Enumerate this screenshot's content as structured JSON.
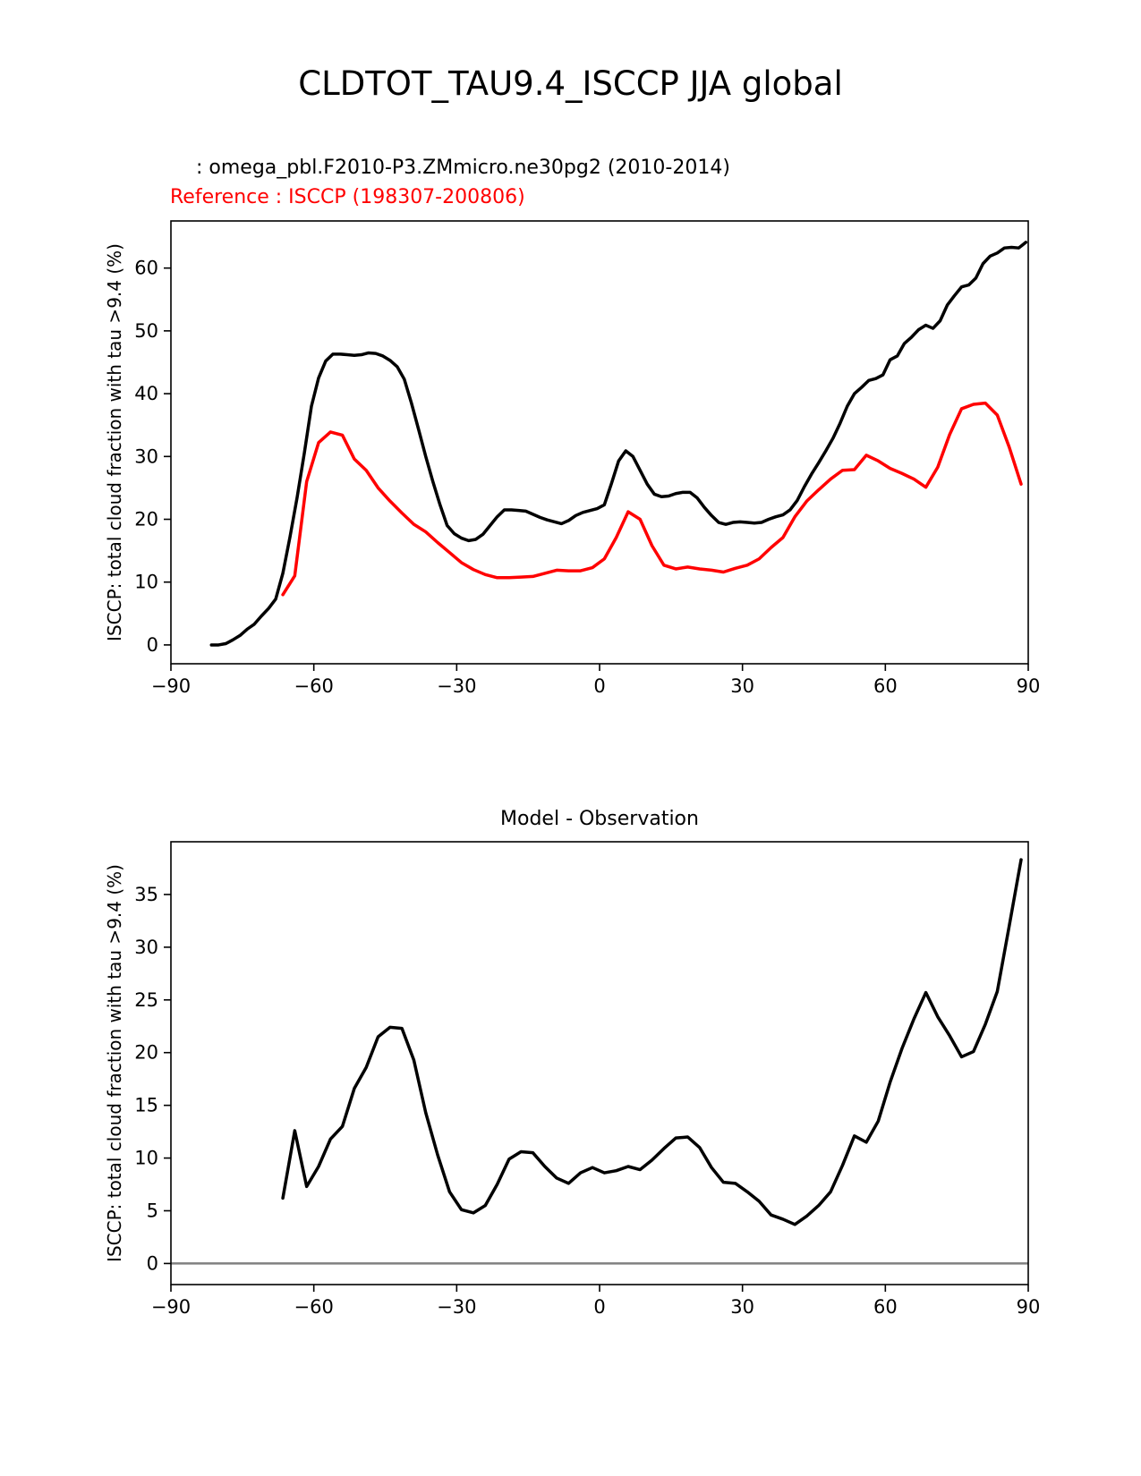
{
  "figure": {
    "title": "CLDTOT_TAU9.4_ISCCP JJA global"
  },
  "top_panel": {
    "test_name": "  : omega_pbl.F2010-P3.ZMmicro.ne30pg2 (2010-2014)",
    "ref_name": "Reference : ISCCP (198307-200806)"
  },
  "bottom_panel": {
    "title": "Model - Observation"
  },
  "colors": {
    "test": "#000000",
    "reference": "#ff0000",
    "zero_line": "#808080"
  },
  "chart_data": [
    {
      "type": "line",
      "title": "",
      "xlabel": "",
      "ylabel": "ISCCP: total cloud fraction with tau >9.4 (%)",
      "xlim": [
        -90,
        90
      ],
      "ylim": [
        -3,
        67.5
      ],
      "xticks": [
        -90,
        -60,
        -30,
        0,
        30,
        60,
        90
      ],
      "xtick_labels": [
        "−90",
        "−60",
        "−30",
        "0",
        "30",
        "60",
        "90"
      ],
      "yticks": [
        0,
        10,
        20,
        30,
        40,
        50,
        60
      ],
      "ytick_labels": [
        "0",
        "10",
        "20",
        "30",
        "40",
        "50",
        "60"
      ],
      "series": [
        {
          "name": "omega_pbl.F2010-P3.ZMmicro.ne30pg2 (2010-2014)",
          "color": "#000000",
          "x": [
            -81.5,
            -80,
            -78.5,
            -77,
            -75.5,
            -74,
            -72.5,
            -71,
            -69.5,
            -68,
            -66.5,
            -65,
            -63.5,
            -62,
            -60.5,
            -59,
            -57.5,
            -56,
            -54.5,
            -53,
            -51.5,
            -50,
            -48.5,
            -47,
            -45.5,
            -44,
            -42.5,
            -41,
            -39.5,
            -38,
            -36.5,
            -35,
            -33.5,
            -32,
            -30.5,
            -29,
            -27.5,
            -26,
            -24.5,
            -23,
            -21.5,
            -20,
            -18.5,
            -17,
            -15.5,
            -14,
            -12.5,
            -11,
            -9.5,
            -8,
            -6.5,
            -5,
            -3.5,
            -2,
            -0.5,
            1,
            2.5,
            4,
            5.5,
            7,
            8.5,
            10,
            11.5,
            13,
            14.5,
            16,
            17.5,
            19,
            20.5,
            22,
            23.5,
            25,
            26.5,
            28,
            29.5,
            31,
            32.5,
            34,
            35.5,
            37,
            38.5,
            40,
            41.5,
            43,
            44.5,
            46,
            47.5,
            49,
            50.5,
            52,
            53.5,
            55,
            56.5,
            58,
            59.5,
            61,
            62.5,
            64,
            65.5,
            67,
            68.5,
            70,
            71.5,
            73,
            74.5,
            76,
            77.5,
            79,
            80.5,
            82,
            83.5,
            85,
            86.5,
            88,
            89.5
          ],
          "values": [
            0,
            0,
            0.2,
            0.8,
            1.5,
            2.5,
            3.3,
            4.6,
            5.8,
            7.3,
            11.4,
            17.2,
            23.5,
            30.5,
            38,
            42.5,
            45.2,
            46.3,
            46.3,
            46.2,
            46.1,
            46.2,
            46.5,
            46.4,
            46,
            45.3,
            44.3,
            42.3,
            38.5,
            34.3,
            30,
            26,
            22.3,
            19,
            17.7,
            17,
            16.6,
            16.8,
            17.6,
            19,
            20.4,
            21.5,
            21.5,
            21.4,
            21.3,
            20.8,
            20.3,
            19.9,
            19.6,
            19.3,
            19.8,
            20.6,
            21.1,
            21.4,
            21.7,
            22.3,
            25.7,
            29.3,
            30.9,
            30,
            27.8,
            25.6,
            24,
            23.6,
            23.7,
            24.1,
            24.3,
            24.3,
            23.4,
            21.9,
            20.6,
            19.5,
            19.2,
            19.5,
            19.6,
            19.5,
            19.4,
            19.5,
            20,
            20.4,
            20.7,
            21.5,
            23,
            25.2,
            27.2,
            29,
            30.9,
            32.9,
            35.3,
            38,
            40,
            41,
            42.1,
            42.4,
            43,
            45.4,
            46,
            48,
            49,
            50.2,
            50.9,
            50.4,
            51.6,
            54.1,
            55.6,
            57,
            57.3,
            58.4,
            60.7,
            61.9,
            62.4,
            63.2,
            63.3,
            63.2,
            64.1
          ]
        },
        {
          "name": "Reference : ISCCP (198307-200806)",
          "color": "#ff0000",
          "x": [
            -66.5,
            -64,
            -61.5,
            -59,
            -56.5,
            -54,
            -51.5,
            -49,
            -46.5,
            -44,
            -41.5,
            -39,
            -36.5,
            -34,
            -31.5,
            -29,
            -26.5,
            -24,
            -21.5,
            -19,
            -16.5,
            -14,
            -11.5,
            -9,
            -6.5,
            -4,
            -1.5,
            1,
            3.5,
            6,
            8.5,
            11,
            13.5,
            16,
            18.5,
            21,
            23.5,
            26,
            28.5,
            31,
            33.5,
            36,
            38.5,
            41,
            43.5,
            46,
            48.5,
            51,
            53.5,
            56,
            58.5,
            61,
            63.5,
            66,
            68.5,
            71,
            73.5,
            76,
            78.5,
            81,
            83.5,
            86,
            88.5
          ],
          "values": [
            8,
            11,
            26,
            32.2,
            33.9,
            33.4,
            29.6,
            27.8,
            25,
            22.9,
            21,
            19.2,
            18,
            16.3,
            14.7,
            13.1,
            12,
            11.2,
            10.7,
            10.7,
            10.8,
            10.9,
            11.4,
            11.9,
            11.8,
            11.8,
            12.3,
            13.7,
            17.1,
            21.2,
            20,
            15.8,
            12.7,
            12.1,
            12.4,
            12.1,
            11.9,
            11.6,
            12.2,
            12.7,
            13.7,
            15.5,
            17.1,
            20.4,
            22.9,
            24.7,
            26.4,
            27.8,
            27.9,
            30.2,
            29.3,
            28.1,
            27.3,
            26.4,
            25.1,
            28.3,
            33.5,
            37.6,
            38.3,
            38.5,
            36.6,
            31.5,
            25.6
          ]
        }
      ]
    },
    {
      "type": "line",
      "title": "Model - Observation",
      "xlabel": "",
      "ylabel": "ISCCP: total cloud fraction with tau >9.4 (%)",
      "xlim": [
        -90,
        90
      ],
      "ylim": [
        -2,
        40
      ],
      "xticks": [
        -90,
        -60,
        -30,
        0,
        30,
        60,
        90
      ],
      "xtick_labels": [
        "−90",
        "−60",
        "−30",
        "0",
        "30",
        "60",
        "90"
      ],
      "yticks": [
        0,
        5,
        10,
        15,
        20,
        25,
        30,
        35
      ],
      "ytick_labels": [
        "0",
        "5",
        "10",
        "15",
        "20",
        "25",
        "30",
        "35"
      ],
      "zero_line": 0,
      "series": [
        {
          "name": "Model - Observation",
          "color": "#000000",
          "x": [
            -66.5,
            -64,
            -61.5,
            -59,
            -56.5,
            -54,
            -51.5,
            -49,
            -46.5,
            -44,
            -41.5,
            -39,
            -36.5,
            -34,
            -31.5,
            -29,
            -26.5,
            -24,
            -21.5,
            -19,
            -16.5,
            -14,
            -11.5,
            -9,
            -6.5,
            -4,
            -1.5,
            1,
            3.5,
            6,
            8.5,
            11,
            13.5,
            16,
            18.5,
            21,
            23.5,
            26,
            28.5,
            31,
            33.5,
            36,
            38.5,
            41,
            43.5,
            46,
            48.5,
            51,
            53.5,
            56,
            58.5,
            61,
            63.5,
            66,
            68.5,
            71,
            73.5,
            76,
            78.5,
            81,
            83.5,
            86,
            88.5
          ],
          "values": [
            6.2,
            12.6,
            7.3,
            9.2,
            11.8,
            13,
            16.6,
            18.6,
            21.5,
            22.4,
            22.3,
            19.3,
            14.3,
            10.3,
            6.8,
            5.1,
            4.8,
            5.5,
            7.5,
            9.9,
            10.6,
            10.5,
            9.2,
            8.1,
            7.6,
            8.6,
            9.1,
            8.6,
            8.8,
            9.2,
            8.9,
            9.8,
            10.9,
            11.9,
            12,
            11,
            9.1,
            7.7,
            7.6,
            6.8,
            5.9,
            4.6,
            4.2,
            3.7,
            4.5,
            5.5,
            6.8,
            9.3,
            12.1,
            11.5,
            13.5,
            17.2,
            20.4,
            23.2,
            25.7,
            23.4,
            21.6,
            19.6,
            20.1,
            22.7,
            25.8,
            32,
            38.3
          ]
        }
      ]
    }
  ]
}
